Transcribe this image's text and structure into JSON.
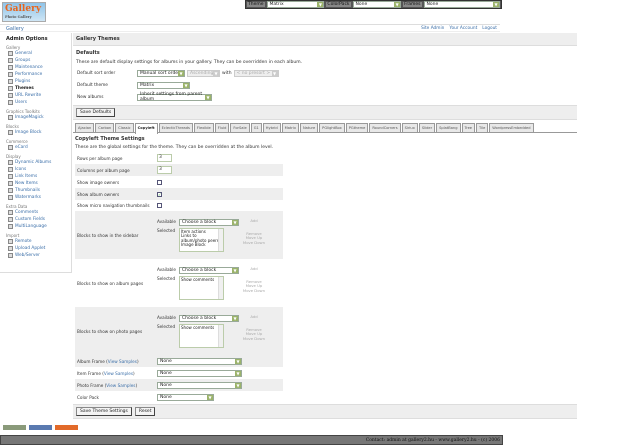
{
  "topbar": {
    "theme_label": "Theme",
    "theme_value": "Matrix",
    "colorpack_label": "ColorPack",
    "colorpack_value": "None",
    "frames_label": "Frames",
    "frames_value": "None"
  },
  "logo": {
    "text": "Gallery",
    "sub": "Photo Gallery"
  },
  "breadcrumb": "Gallery",
  "header_links": [
    "Site Admin",
    "Your Account",
    "Logout"
  ],
  "sidebar": {
    "title": "Admin Options",
    "groups": [
      {
        "name": "Gallery",
        "items": [
          "General",
          "Groups",
          "Maintenance",
          "Performance",
          "Plugins",
          "Themes",
          "URL Rewrite",
          "Users"
        ]
      },
      {
        "name": "Graphics Toolkits",
        "items": [
          "ImageMagick"
        ]
      },
      {
        "name": "Blocks",
        "items": [
          "Image Block"
        ]
      },
      {
        "name": "Commerce",
        "items": [
          "eCard"
        ]
      },
      {
        "name": "Display",
        "items": [
          "Dynamic Albums",
          "Icons",
          "Link Items",
          "New Items",
          "Thumbnails",
          "Watermarks"
        ]
      },
      {
        "name": "Extra Data",
        "items": [
          "Comments",
          "Custom Fields",
          "MultiLanguage"
        ]
      },
      {
        "name": "Import",
        "items": [
          "Remote",
          "Upload Applet",
          "Web/Server"
        ]
      }
    ],
    "current": "Themes"
  },
  "main": {
    "title": "Gallery Themes",
    "defaults": {
      "heading": "Defaults",
      "desc": "These are default display settings for albums in your gallery. They can be overridden in each album.",
      "sort_label": "Default sort order",
      "sort_value": "Manual sort order",
      "direction_value": "Ascending",
      "with_label": "with",
      "presort_value": "< no presort >",
      "theme_label": "Default theme",
      "theme_value": "Matrix",
      "new_albums_label": "New albums",
      "new_albums_value": "Inherit settings from parent album",
      "save_button": "Save Defaults"
    },
    "tabs": [
      "Ajaxian",
      "Carbon",
      "Classic",
      "Copyleft",
      "EclecticThreads",
      "Flexible",
      "Fluid",
      "ForSale",
      "G1",
      "Hybrid",
      "Matrix",
      "Nature",
      "PGlightBox",
      "PGtheme",
      "RoundCorners",
      "Siriux",
      "Slider",
      "SplatBang",
      "Tree",
      "Tile",
      "WordpressEmbedded"
    ],
    "active_tab": "Copyleft",
    "settings": {
      "heading": "Copyleft Theme Settings",
      "desc": "These are the global settings for the theme. They can be overridden at the album level.",
      "rows_label": "Rows per album page",
      "rows_value": "3",
      "cols_label": "Columns per album page",
      "cols_value": "3",
      "image_owners_label": "Show image owners",
      "image_owners": false,
      "album_owners_label": "Show album owners",
      "album_owners": true,
      "micro_nav_label": "Show micro navigation thumbnails",
      "micro_nav": false,
      "available_label": "Available",
      "selected_label": "Selected",
      "choose_value": "Choose a block",
      "add": "Add",
      "remove": "Remove",
      "move_up": "Move Up",
      "move_down": "Move Down",
      "blocks": [
        {
          "label": "Blocks to show in the sidebar",
          "selected": [
            "Item actions",
            "Links to album/photo peers",
            "Image Block"
          ]
        },
        {
          "label": "Blocks to show on album pages",
          "selected": [
            "Show comments"
          ]
        },
        {
          "label": "Blocks to show on photo pages",
          "selected": [
            "Show comments"
          ]
        }
      ],
      "view_samples": "View Samples",
      "album_frame_label": "Album Frame",
      "album_frame_value": "None",
      "item_frame_label": "Item Frame",
      "item_frame_value": "None",
      "photo_frame_label": "Photo Frame",
      "photo_frame_value": "None",
      "colorpack_label": "Color Pack",
      "colorpack_value": "None",
      "save_button": "Save Theme Settings",
      "reset_button": "Reset"
    }
  },
  "footer": "Contact: admin at gallery2.hu - www.gallery2.hu - (c) 2006"
}
